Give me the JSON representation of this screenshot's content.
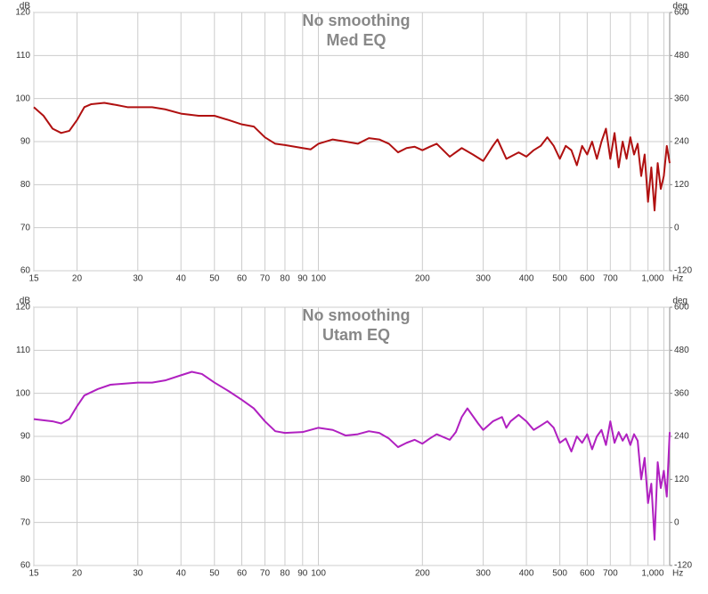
{
  "chart_data": [
    {
      "type": "line",
      "title": "No smoothing",
      "subtitle": "Med EQ",
      "ylabel": "dB",
      "y2label": "deg",
      "xlabel": "Hz",
      "log_x": true,
      "grid": true,
      "xlim": [
        15,
        1040
      ],
      "ylim": [
        60,
        120
      ],
      "y2lim": [
        -120,
        600
      ],
      "xticks": [
        15,
        20,
        30,
        40,
        50,
        60,
        70,
        80,
        90,
        100,
        200,
        300,
        400,
        500,
        600,
        700,
        {
          "value": 1000,
          "label": "1,000"
        }
      ],
      "xminor_ticks": [
        800,
        900
      ],
      "yticks": [
        60,
        70,
        80,
        90,
        100,
        110,
        120
      ],
      "y2ticks": [
        -120,
        0,
        120,
        240,
        360,
        480,
        600
      ],
      "x": [
        15,
        16,
        17,
        18,
        19,
        20,
        21,
        22,
        24,
        26,
        28,
        30,
        33,
        36,
        40,
        45,
        50,
        55,
        60,
        65,
        70,
        75,
        80,
        90,
        95,
        100,
        110,
        120,
        130,
        140,
        150,
        160,
        170,
        180,
        190,
        200,
        210,
        220,
        240,
        260,
        280,
        300,
        320,
        330,
        350,
        380,
        400,
        420,
        440,
        460,
        480,
        500,
        520,
        540,
        560,
        580,
        600,
        620,
        640,
        660,
        680,
        700,
        720,
        740,
        760,
        780,
        800,
        820,
        840,
        860,
        880,
        900,
        920,
        940,
        960,
        980,
        1000,
        1020,
        1040
      ],
      "series": [
        {
          "color": "#b01010",
          "values": [
            98,
            96,
            93,
            92,
            92.5,
            95,
            98,
            98.7,
            99,
            98.5,
            98,
            98,
            98,
            97.5,
            96.5,
            96,
            96,
            95,
            94,
            93.5,
            91,
            89.5,
            89.2,
            88.5,
            88.2,
            89.5,
            90.5,
            90,
            89.5,
            90.8,
            90.5,
            89.5,
            87.5,
            88.5,
            88.8,
            88,
            88.8,
            89.5,
            86.5,
            88.5,
            87,
            85.5,
            89,
            90.5,
            86,
            87.5,
            86.5,
            88,
            89,
            91,
            89,
            86,
            89,
            88,
            84.5,
            89,
            87,
            90,
            86,
            90,
            93,
            86,
            92,
            84,
            90,
            86,
            91,
            87,
            89.5,
            82,
            87,
            76,
            84,
            74,
            85,
            79,
            82,
            89,
            85
          ]
        }
      ]
    },
    {
      "type": "line",
      "title": "No smoothing",
      "subtitle": "Utam EQ",
      "ylabel": "dB",
      "y2label": "deg",
      "xlabel": "Hz",
      "log_x": true,
      "grid": true,
      "xlim": [
        15,
        1040
      ],
      "ylim": [
        60,
        120
      ],
      "y2lim": [
        -120,
        600
      ],
      "xticks": [
        15,
        20,
        30,
        40,
        50,
        60,
        70,
        80,
        90,
        100,
        200,
        300,
        400,
        500,
        600,
        700,
        {
          "value": 1000,
          "label": "1,000"
        }
      ],
      "xminor_ticks": [
        800,
        900
      ],
      "yticks": [
        60,
        70,
        80,
        90,
        100,
        110,
        120
      ],
      "y2ticks": [
        -120,
        0,
        120,
        240,
        360,
        480,
        600
      ],
      "x": [
        15,
        17,
        18,
        19,
        20,
        21,
        23,
        25,
        30,
        33,
        36,
        40,
        43,
        46,
        50,
        55,
        60,
        65,
        70,
        75,
        80,
        90,
        100,
        110,
        120,
        130,
        140,
        150,
        160,
        170,
        180,
        190,
        200,
        210,
        220,
        240,
        250,
        260,
        270,
        290,
        300,
        320,
        340,
        350,
        360,
        380,
        400,
        420,
        440,
        460,
        480,
        500,
        520,
        540,
        560,
        580,
        600,
        620,
        640,
        660,
        680,
        700,
        720,
        740,
        760,
        780,
        800,
        820,
        840,
        860,
        880,
        900,
        920,
        940,
        960,
        980,
        1000,
        1020,
        1040
      ],
      "series": [
        {
          "color": "#b020c0",
          "values": [
            94,
            93.5,
            93,
            94,
            97,
            99.5,
            101,
            102,
            102.5,
            102.5,
            103,
            104.2,
            105,
            104.5,
            102.5,
            100.5,
            98.5,
            96.5,
            93.5,
            91.2,
            90.8,
            91,
            92,
            91.5,
            90.2,
            90.5,
            91.2,
            90.8,
            89.5,
            87.5,
            88.5,
            89.2,
            88.3,
            89.5,
            90.5,
            89.2,
            91,
            94.5,
            96.5,
            93,
            91.5,
            93.5,
            94.5,
            92,
            93.5,
            95,
            93.5,
            91.5,
            92.5,
            93.5,
            92,
            88.5,
            89.5,
            86.5,
            90,
            88.5,
            90.5,
            87,
            90,
            91.5,
            88,
            93.5,
            88.5,
            91,
            89,
            90.5,
            88,
            90.5,
            89,
            80,
            85,
            74.5,
            79,
            66,
            84,
            78,
            82,
            76,
            91
          ]
        }
      ]
    }
  ]
}
